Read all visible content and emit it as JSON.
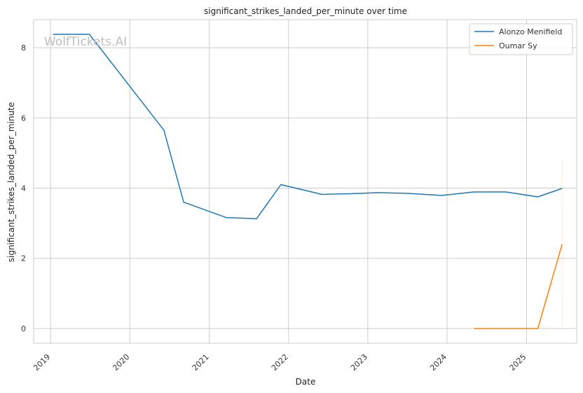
{
  "chart_data": {
    "type": "line",
    "title": "significant_strikes_landed_per_minute over time",
    "xlabel": "Date",
    "ylabel": "significant_strikes_landed_per_minute",
    "x_ticks": [
      "2019",
      "2020",
      "2021",
      "2022",
      "2023",
      "2024",
      "2025"
    ],
    "y_ticks": [
      0,
      2,
      4,
      6,
      8
    ],
    "xlim": [
      "2018-10-15",
      "2025-08-20"
    ],
    "ylim": [
      -0.42,
      8.8
    ],
    "grid": true,
    "legend_position": "top-right",
    "watermark": "WolfTickets.AI",
    "series": [
      {
        "name": "Alonzo Menifield",
        "color": "#1f77b4",
        "points": [
          [
            "2019-01-12",
            8.38
          ],
          [
            "2019-06-29",
            8.38
          ],
          [
            "2020-06-06",
            5.65
          ],
          [
            "2020-09-05",
            3.6
          ],
          [
            "2021-03-20",
            3.16
          ],
          [
            "2021-08-07",
            3.13
          ],
          [
            "2021-11-27",
            4.1
          ],
          [
            "2022-06-04",
            3.82
          ],
          [
            "2022-10-15",
            3.84
          ],
          [
            "2023-02-18",
            3.87
          ],
          [
            "2023-07-01",
            3.85
          ],
          [
            "2023-12-09",
            3.79
          ],
          [
            "2024-05-04",
            3.89
          ],
          [
            "2024-09-28",
            3.89
          ],
          [
            "2025-02-22",
            3.75
          ],
          [
            "2025-06-14",
            3.99
          ]
        ]
      },
      {
        "name": "Oumar Sy",
        "color": "#ff7f0e",
        "points": [
          [
            "2024-05-04",
            0
          ],
          [
            "2024-09-28",
            0
          ],
          [
            "2025-02-22",
            0
          ],
          [
            "2025-06-14",
            2.4
          ]
        ],
        "faint_vertical": [
          "2025-06-14",
          0,
          4.8
        ]
      }
    ]
  }
}
